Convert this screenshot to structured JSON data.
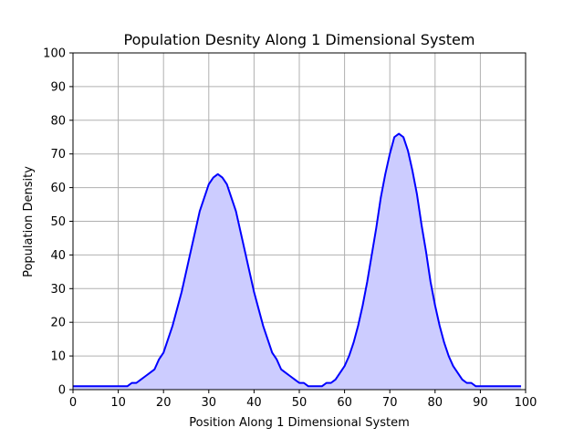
{
  "chart_data": {
    "type": "area",
    "title": "Population Desnity Along 1 Dimensional System",
    "xlabel": "Position Along 1 Dimensional System",
    "ylabel": "Population Density",
    "xlim": [
      0,
      100
    ],
    "ylim": [
      0,
      100
    ],
    "xticks": [
      "0",
      "10",
      "20",
      "30",
      "40",
      "50",
      "60",
      "70",
      "80",
      "90",
      "100"
    ],
    "yticks": [
      "0",
      "10",
      "20",
      "30",
      "40",
      "50",
      "60",
      "70",
      "80",
      "90",
      "100"
    ],
    "grid": true,
    "line_color": "#0000ff",
    "fill_color": "#ccccff",
    "x": [
      0,
      1,
      2,
      3,
      4,
      5,
      6,
      7,
      8,
      9,
      10,
      11,
      12,
      13,
      14,
      15,
      16,
      17,
      18,
      19,
      20,
      21,
      22,
      23,
      24,
      25,
      26,
      27,
      28,
      29,
      30,
      31,
      32,
      33,
      34,
      35,
      36,
      37,
      38,
      39,
      40,
      41,
      42,
      43,
      44,
      45,
      46,
      47,
      48,
      49,
      50,
      51,
      52,
      53,
      54,
      55,
      56,
      57,
      58,
      59,
      60,
      61,
      62,
      63,
      64,
      65,
      66,
      67,
      68,
      69,
      70,
      71,
      72,
      73,
      74,
      75,
      76,
      77,
      78,
      79,
      80,
      81,
      82,
      83,
      84,
      85,
      86,
      87,
      88,
      89,
      90,
      91,
      92,
      93,
      94,
      95,
      96,
      97,
      98,
      99
    ],
    "y": [
      1,
      1,
      1,
      1,
      1,
      1,
      1,
      1,
      1,
      1,
      1,
      1,
      1,
      2,
      2,
      3,
      4,
      5,
      6,
      9,
      11,
      15,
      19,
      24,
      29,
      35,
      41,
      47,
      53,
      57,
      61,
      63,
      64,
      63,
      61,
      57,
      53,
      47,
      41,
      35,
      29,
      24,
      19,
      15,
      11,
      9,
      6,
      5,
      4,
      3,
      2,
      2,
      1,
      1,
      1,
      1,
      2,
      2,
      3,
      5,
      7,
      10,
      14,
      19,
      25,
      32,
      40,
      48,
      57,
      64,
      70,
      75,
      76,
      75,
      71,
      65,
      58,
      49,
      41,
      32,
      25,
      19,
      14,
      10,
      7,
      5,
      3,
      2,
      2,
      1,
      1,
      1,
      1,
      1,
      1,
      1,
      1,
      1,
      1,
      1
    ]
  }
}
